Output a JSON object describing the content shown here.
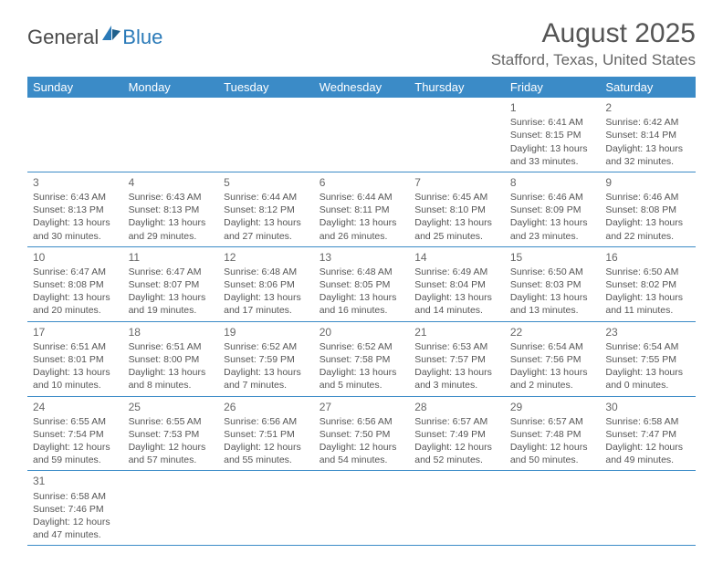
{
  "brand": {
    "general": "General",
    "blue": "Blue"
  },
  "title": "August 2025",
  "location": "Stafford, Texas, United States",
  "colors": {
    "header_bar": "#3b8bc7",
    "header_text": "#ffffff",
    "cell_border": "#3b8bc7",
    "text": "#555555",
    "brand_blue": "#2a7ab8"
  },
  "weekdays": [
    "Sunday",
    "Monday",
    "Tuesday",
    "Wednesday",
    "Thursday",
    "Friday",
    "Saturday"
  ],
  "weeks": [
    [
      null,
      null,
      null,
      null,
      null,
      {
        "d": "1",
        "sr": "6:41 AM",
        "ss": "8:15 PM",
        "dl": "13 hours and 33 minutes."
      },
      {
        "d": "2",
        "sr": "6:42 AM",
        "ss": "8:14 PM",
        "dl": "13 hours and 32 minutes."
      }
    ],
    [
      {
        "d": "3",
        "sr": "6:43 AM",
        "ss": "8:13 PM",
        "dl": "13 hours and 30 minutes."
      },
      {
        "d": "4",
        "sr": "6:43 AM",
        "ss": "8:13 PM",
        "dl": "13 hours and 29 minutes."
      },
      {
        "d": "5",
        "sr": "6:44 AM",
        "ss": "8:12 PM",
        "dl": "13 hours and 27 minutes."
      },
      {
        "d": "6",
        "sr": "6:44 AM",
        "ss": "8:11 PM",
        "dl": "13 hours and 26 minutes."
      },
      {
        "d": "7",
        "sr": "6:45 AM",
        "ss": "8:10 PM",
        "dl": "13 hours and 25 minutes."
      },
      {
        "d": "8",
        "sr": "6:46 AM",
        "ss": "8:09 PM",
        "dl": "13 hours and 23 minutes."
      },
      {
        "d": "9",
        "sr": "6:46 AM",
        "ss": "8:08 PM",
        "dl": "13 hours and 22 minutes."
      }
    ],
    [
      {
        "d": "10",
        "sr": "6:47 AM",
        "ss": "8:08 PM",
        "dl": "13 hours and 20 minutes."
      },
      {
        "d": "11",
        "sr": "6:47 AM",
        "ss": "8:07 PM",
        "dl": "13 hours and 19 minutes."
      },
      {
        "d": "12",
        "sr": "6:48 AM",
        "ss": "8:06 PM",
        "dl": "13 hours and 17 minutes."
      },
      {
        "d": "13",
        "sr": "6:48 AM",
        "ss": "8:05 PM",
        "dl": "13 hours and 16 minutes."
      },
      {
        "d": "14",
        "sr": "6:49 AM",
        "ss": "8:04 PM",
        "dl": "13 hours and 14 minutes."
      },
      {
        "d": "15",
        "sr": "6:50 AM",
        "ss": "8:03 PM",
        "dl": "13 hours and 13 minutes."
      },
      {
        "d": "16",
        "sr": "6:50 AM",
        "ss": "8:02 PM",
        "dl": "13 hours and 11 minutes."
      }
    ],
    [
      {
        "d": "17",
        "sr": "6:51 AM",
        "ss": "8:01 PM",
        "dl": "13 hours and 10 minutes."
      },
      {
        "d": "18",
        "sr": "6:51 AM",
        "ss": "8:00 PM",
        "dl": "13 hours and 8 minutes."
      },
      {
        "d": "19",
        "sr": "6:52 AM",
        "ss": "7:59 PM",
        "dl": "13 hours and 7 minutes."
      },
      {
        "d": "20",
        "sr": "6:52 AM",
        "ss": "7:58 PM",
        "dl": "13 hours and 5 minutes."
      },
      {
        "d": "21",
        "sr": "6:53 AM",
        "ss": "7:57 PM",
        "dl": "13 hours and 3 minutes."
      },
      {
        "d": "22",
        "sr": "6:54 AM",
        "ss": "7:56 PM",
        "dl": "13 hours and 2 minutes."
      },
      {
        "d": "23",
        "sr": "6:54 AM",
        "ss": "7:55 PM",
        "dl": "13 hours and 0 minutes."
      }
    ],
    [
      {
        "d": "24",
        "sr": "6:55 AM",
        "ss": "7:54 PM",
        "dl": "12 hours and 59 minutes."
      },
      {
        "d": "25",
        "sr": "6:55 AM",
        "ss": "7:53 PM",
        "dl": "12 hours and 57 minutes."
      },
      {
        "d": "26",
        "sr": "6:56 AM",
        "ss": "7:51 PM",
        "dl": "12 hours and 55 minutes."
      },
      {
        "d": "27",
        "sr": "6:56 AM",
        "ss": "7:50 PM",
        "dl": "12 hours and 54 minutes."
      },
      {
        "d": "28",
        "sr": "6:57 AM",
        "ss": "7:49 PM",
        "dl": "12 hours and 52 minutes."
      },
      {
        "d": "29",
        "sr": "6:57 AM",
        "ss": "7:48 PM",
        "dl": "12 hours and 50 minutes."
      },
      {
        "d": "30",
        "sr": "6:58 AM",
        "ss": "7:47 PM",
        "dl": "12 hours and 49 minutes."
      }
    ],
    [
      {
        "d": "31",
        "sr": "6:58 AM",
        "ss": "7:46 PM",
        "dl": "12 hours and 47 minutes."
      },
      null,
      null,
      null,
      null,
      null,
      null
    ]
  ],
  "labels": {
    "sunrise": "Sunrise: ",
    "sunset": "Sunset: ",
    "daylight": "Daylight: "
  }
}
